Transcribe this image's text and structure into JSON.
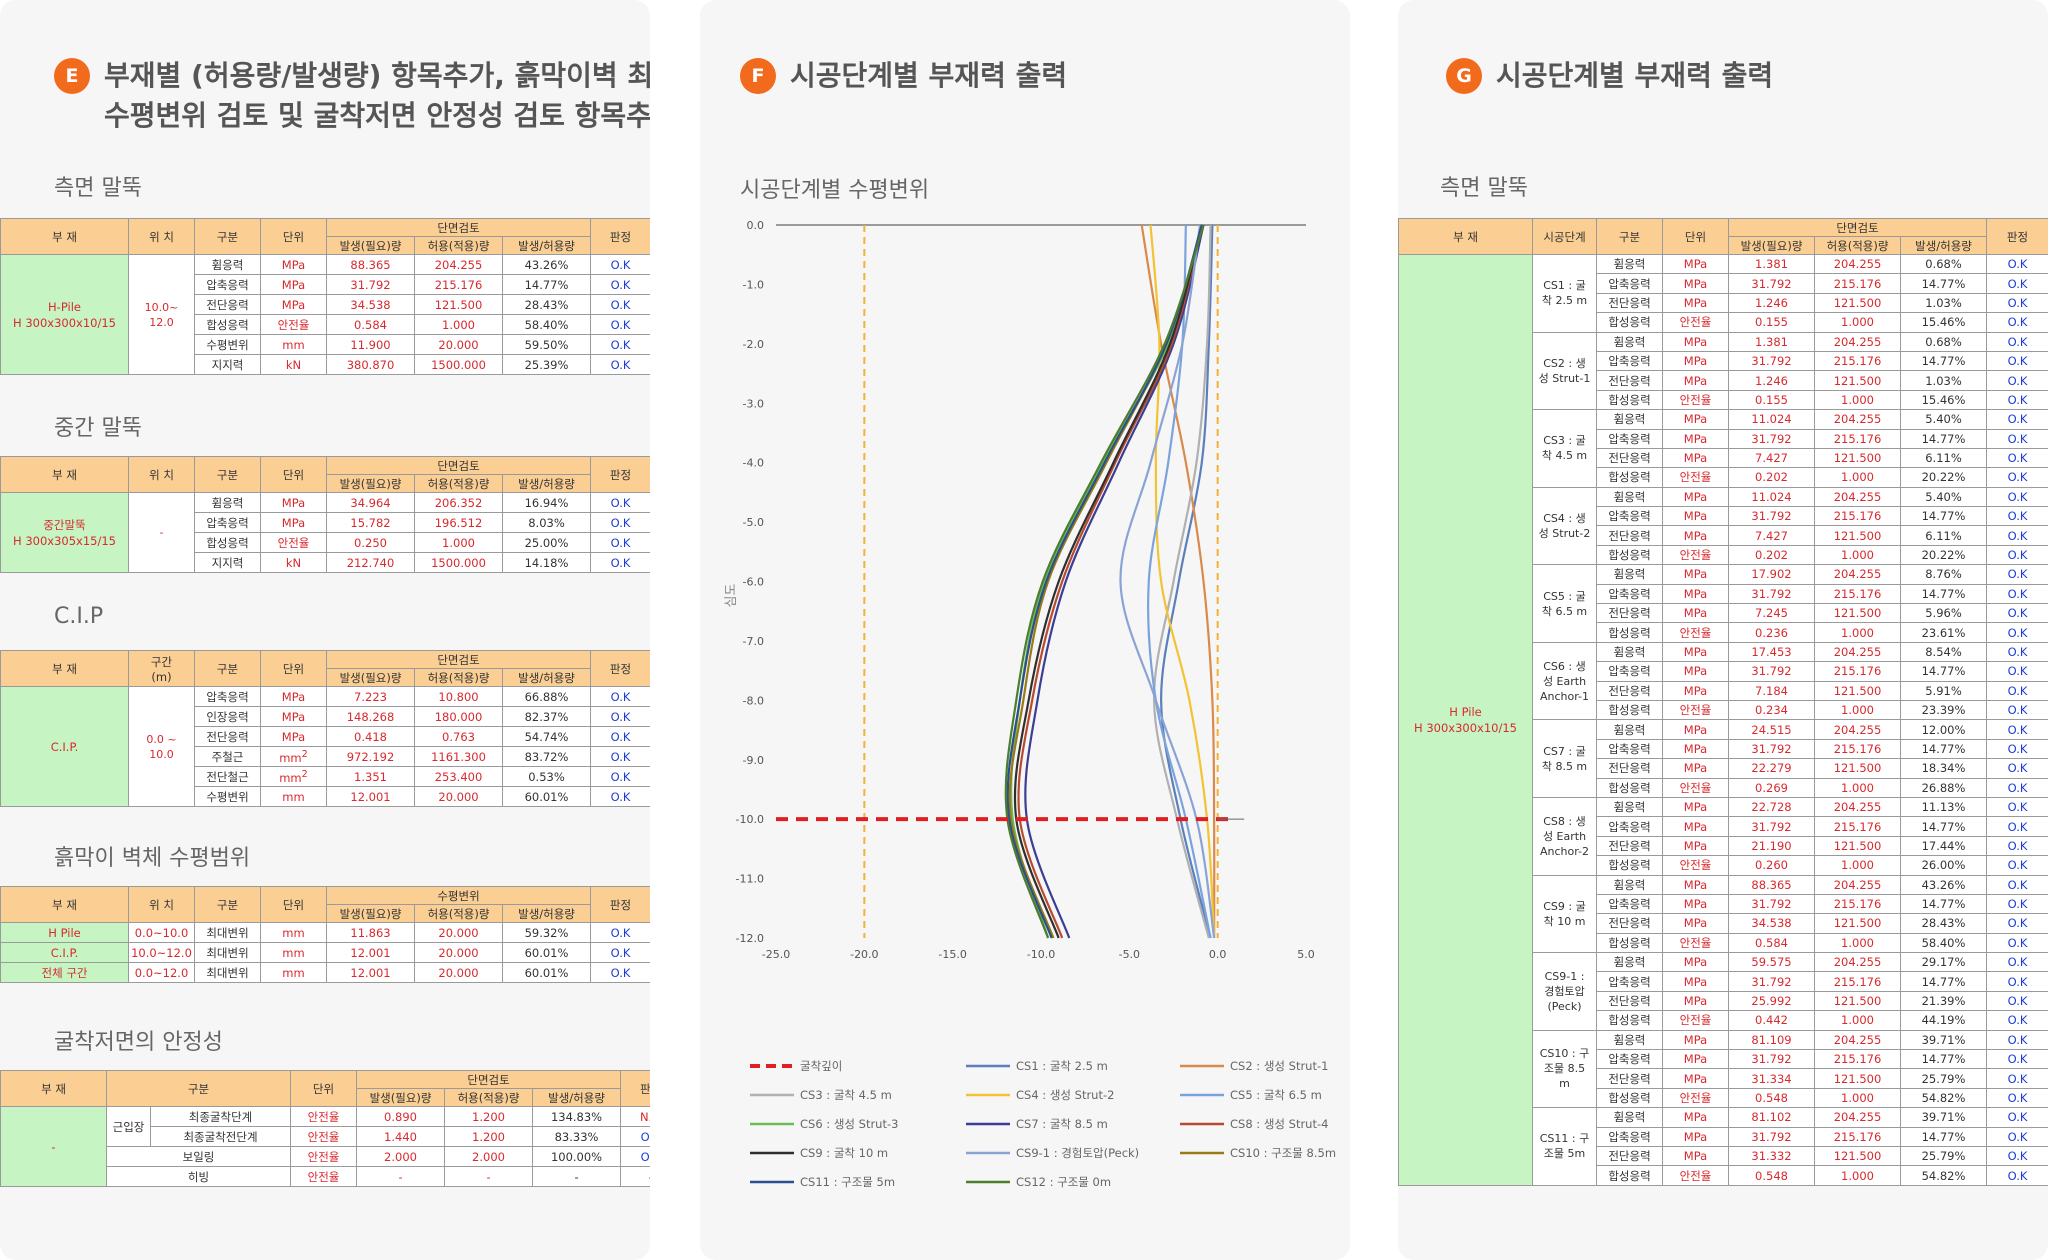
{
  "panelE": {
    "badge": "E",
    "title_line1": "부재별 (허용량/발생량) 항목추가, 흙막이벽 최대",
    "title_line2": "수평변위 검토 및 굴착저면 안정성 검토 항목추가",
    "side_pile": {
      "section_title": "측면 말뚝",
      "headers": {
        "material": "부 재",
        "position": "위 치",
        "category": "구분",
        "unit": "단위",
        "group": "단면검토",
        "occur": "발생(필요)량",
        "allow": "허용(적용)량",
        "ratio": "발생/허용량",
        "verdict": "판정"
      },
      "material": "H-Pile\nH 300x300x10/15",
      "position": "10.0~\n12.0",
      "rows": [
        {
          "cat": "휨응력",
          "unit": "MPa",
          "occur": "88.365",
          "allow": "204.255",
          "ratio": "43.26%",
          "verdict": "O.K"
        },
        {
          "cat": "압축응력",
          "unit": "MPa",
          "occur": "31.792",
          "allow": "215.176",
          "ratio": "14.77%",
          "verdict": "O.K"
        },
        {
          "cat": "전단응력",
          "unit": "MPa",
          "occur": "34.538",
          "allow": "121.500",
          "ratio": "28.43%",
          "verdict": "O.K"
        },
        {
          "cat": "합성응력",
          "unit": "안전율",
          "occur": "0.584",
          "allow": "1.000",
          "ratio": "58.40%",
          "verdict": "O.K"
        },
        {
          "cat": "수평변위",
          "unit": "mm",
          "occur": "11.900",
          "allow": "20.000",
          "ratio": "59.50%",
          "verdict": "O.K"
        },
        {
          "cat": "지지력",
          "unit": "kN",
          "occur": "380.870",
          "allow": "1500.000",
          "ratio": "25.39%",
          "verdict": "O.K"
        }
      ]
    },
    "mid_pile": {
      "section_title": "중간 말뚝",
      "material": "중간말뚝\nH 300x305x15/15",
      "position": "-",
      "rows": [
        {
          "cat": "휨응력",
          "unit": "MPa",
          "occur": "34.964",
          "allow": "206.352",
          "ratio": "16.94%",
          "verdict": "O.K"
        },
        {
          "cat": "압축응력",
          "unit": "MPa",
          "occur": "15.782",
          "allow": "196.512",
          "ratio": "8.03%",
          "verdict": "O.K"
        },
        {
          "cat": "합성응력",
          "unit": "안전율",
          "occur": "0.250",
          "allow": "1.000",
          "ratio": "25.00%",
          "verdict": "O.K"
        },
        {
          "cat": "지지력",
          "unit": "kN",
          "occur": "212.740",
          "allow": "1500.000",
          "ratio": "14.18%",
          "verdict": "O.K"
        }
      ]
    },
    "cip": {
      "section_title": "C.I.P",
      "range_header": "구간\n(m)",
      "material": "C.I.P.",
      "range": "0.0 ~\n10.0",
      "rows": [
        {
          "cat": "압축응력",
          "unit": "MPa",
          "occur": "7.223",
          "allow": "10.800",
          "ratio": "66.88%",
          "verdict": "O.K"
        },
        {
          "cat": "인장응력",
          "unit": "MPa",
          "occur": "148.268",
          "allow": "180.000",
          "ratio": "82.37%",
          "verdict": "O.K"
        },
        {
          "cat": "전단응력",
          "unit": "MPa",
          "occur": "0.418",
          "allow": "0.763",
          "ratio": "54.74%",
          "verdict": "O.K"
        },
        {
          "cat": "주철근",
          "unit": "mm²",
          "occur": "972.192",
          "allow": "1161.300",
          "ratio": "83.72%",
          "verdict": "O.K"
        },
        {
          "cat": "전단철근",
          "unit": "mm²",
          "occur": "1.351",
          "allow": "253.400",
          "ratio": "0.53%",
          "verdict": "O.K"
        },
        {
          "cat": "수평변위",
          "unit": "mm",
          "occur": "12.001",
          "allow": "20.000",
          "ratio": "60.01%",
          "verdict": "O.K"
        }
      ]
    },
    "wall_disp": {
      "section_title": "흙막이 벽체 수평범위",
      "group": "수평변위",
      "rows": [
        {
          "mat": "H Pile",
          "pos": "0.0~10.0",
          "cat": "최대변위",
          "unit": "mm",
          "occur": "11.863",
          "allow": "20.000",
          "ratio": "59.32%",
          "verdict": "O.K"
        },
        {
          "mat": "C.I.P.",
          "pos": "10.0~12.0",
          "cat": "최대변위",
          "unit": "mm",
          "occur": "12.001",
          "allow": "20.000",
          "ratio": "60.01%",
          "verdict": "O.K"
        },
        {
          "mat": "전체 구간",
          "pos": "0.0~12.0",
          "cat": "최대변위",
          "unit": "mm",
          "occur": "12.001",
          "allow": "20.000",
          "ratio": "60.01%",
          "verdict": "O.K"
        }
      ]
    },
    "bottom": {
      "section_title": "굴착저면의 안정성",
      "material": "-",
      "heave_label": "근입장",
      "rows": [
        {
          "cat": "최종굴착단계",
          "unit": "안전율",
          "occur": "0.890",
          "allow": "1.200",
          "ratio": "134.83%",
          "verdict": "N.G"
        },
        {
          "cat": "최종굴착전단계",
          "unit": "안전율",
          "occur": "1.440",
          "allow": "1.200",
          "ratio": "83.33%",
          "verdict": "O.K"
        },
        {
          "cat": "보일링",
          "unit": "안전율",
          "occur": "2.000",
          "allow": "2.000",
          "ratio": "100.00%",
          "verdict": "O.K"
        },
        {
          "cat": "히빙",
          "unit": "안전율",
          "occur": "-",
          "allow": "-",
          "ratio": "-",
          "verdict": "-"
        }
      ]
    }
  },
  "panelF": {
    "badge": "F",
    "title": "시공단계별 부재력 출력",
    "chart_title": "시공단계별 수평변위",
    "colors": {
      "excav": "#e02020",
      "ref": "#f2b233"
    }
  },
  "chart_data": {
    "type": "line",
    "title": "시공단계별 수평변위",
    "ylabel": "심도",
    "xlim": [
      -25,
      5
    ],
    "ylim": [
      -12,
      0
    ],
    "xticks": [
      "-25.0",
      "-20.0",
      "-15.0",
      "-10.0",
      "-5.0",
      "0.0",
      "5.0"
    ],
    "yticks": [
      "0.0",
      "-1.0",
      "-2.0",
      "-3.0",
      "-4.0",
      "-5.0",
      "-6.0",
      "-7.0",
      "-8.0",
      "-9.0",
      "-10.0",
      "-11.0",
      "-12.0"
    ],
    "excavation_line": {
      "name": "굴착깊이",
      "y": -10,
      "x": [
        -25,
        1
      ]
    },
    "reference_lines": [
      {
        "x": -20
      },
      {
        "x": 0
      }
    ],
    "depths": [
      0,
      -2,
      -4,
      -6,
      -8,
      -10,
      -12
    ],
    "series": [
      {
        "name": "CS1 : 굴착 2.5 m",
        "color": "#5b7fbd",
        "x": [
          -0.3,
          -0.5,
          -0.9,
          -2.2,
          -3.2,
          -2.1,
          -0.4
        ]
      },
      {
        "name": "CS2 : 생성 Strut-1",
        "color": "#d98a4a",
        "x": [
          -4.3,
          -3.2,
          -1.8,
          -0.8,
          -0.3,
          -0.2,
          -0.2
        ]
      },
      {
        "name": "CS3 : 굴착 4.5 m",
        "color": "#b0b0b0",
        "x": [
          -0.4,
          -0.6,
          -1.2,
          -2.5,
          -3.6,
          -2.3,
          -0.5
        ]
      },
      {
        "name": "CS4 : 생성 Strut-2",
        "color": "#f2c333",
        "x": [
          -3.8,
          -3.3,
          -3.5,
          -3.2,
          -1.6,
          -0.6,
          -0.2
        ]
      },
      {
        "name": "CS5 : 굴착 6.5 m",
        "color": "#7aa3dc",
        "x": [
          -1.8,
          -2.0,
          -2.8,
          -3.9,
          -3.5,
          -1.8,
          -0.4
        ]
      },
      {
        "name": "CS6 : 생성 Strut-3",
        "color": "#6bbd5b",
        "x": [
          -0.8,
          -2.8,
          -6.5,
          -9.8,
          -11.2,
          -11.6,
          -9.6
        ]
      },
      {
        "name": "CS7 : 굴착 8.5 m",
        "color": "#3a3f94",
        "x": [
          -0.8,
          -2.5,
          -5.6,
          -8.6,
          -10.2,
          -10.8,
          -8.4
        ]
      },
      {
        "name": "CS8 : 생성 Strut-4",
        "color": "#b84b2f",
        "x": [
          -0.9,
          -2.6,
          -5.8,
          -8.8,
          -10.5,
          -11.2,
          -8.8
        ]
      },
      {
        "name": "CS9 : 굴착 10 m",
        "color": "#2f2f2f",
        "x": [
          -0.9,
          -2.7,
          -5.9,
          -9.0,
          -10.7,
          -11.4,
          -9.0
        ]
      },
      {
        "name": "CS9-1 : 경험토압(Peck)",
        "color": "#8aa3d6",
        "x": [
          -1.0,
          -2.0,
          -3.8,
          -5.5,
          -3.5,
          -1.2,
          -0.2
        ]
      },
      {
        "name": "CS10 : 구조물 8.5m",
        "color": "#9a7a14",
        "x": [
          -0.9,
          -2.9,
          -6.3,
          -9.6,
          -11.0,
          -11.7,
          -9.3
        ]
      },
      {
        "name": "CS11 : 구조물 5m",
        "color": "#2a4f8f",
        "x": [
          -0.9,
          -2.9,
          -6.4,
          -9.7,
          -11.2,
          -11.8,
          -9.4
        ]
      },
      {
        "name": "CS12 : 구조물 0m",
        "color": "#4d7d2f",
        "x": [
          -0.8,
          -3.0,
          -6.6,
          -9.9,
          -11.4,
          -11.9,
          -9.6
        ]
      }
    ]
  },
  "panelG": {
    "badge": "G",
    "title": "시공단계별 부재력 출력",
    "section_title": "측면 말뚝",
    "headers": {
      "material": "부 재",
      "stage": "시공단계",
      "category": "구분",
      "unit": "단위",
      "group": "단면검토",
      "occur": "발생(필요)량",
      "allow": "허용(적용)량",
      "ratio": "발생/허용량",
      "verdict": "판정"
    },
    "material": "H Pile\nH 300x300x10/15",
    "cats": [
      "휨응력",
      "압축응력",
      "전단응력",
      "합성응력"
    ],
    "stages": [
      {
        "name": "CS1 : 굴\n착 2.5 m",
        "rows": [
          [
            "MPa",
            "1.381",
            "204.255",
            "0.68%",
            "O.K"
          ],
          [
            "MPa",
            "31.792",
            "215.176",
            "14.77%",
            "O.K"
          ],
          [
            "MPa",
            "1.246",
            "121.500",
            "1.03%",
            "O.K"
          ],
          [
            "안전율",
            "0.155",
            "1.000",
            "15.46%",
            "O.K"
          ]
        ]
      },
      {
        "name": "CS2 : 생\n성 Strut-1",
        "rows": [
          [
            "MPa",
            "1.381",
            "204.255",
            "0.68%",
            "O.K"
          ],
          [
            "MPa",
            "31.792",
            "215.176",
            "14.77%",
            "O.K"
          ],
          [
            "MPa",
            "1.246",
            "121.500",
            "1.03%",
            "O.K"
          ],
          [
            "안전율",
            "0.155",
            "1.000",
            "15.46%",
            "O.K"
          ]
        ]
      },
      {
        "name": "CS3 : 굴\n착 4.5 m",
        "rows": [
          [
            "MPa",
            "11.024",
            "204.255",
            "5.40%",
            "O.K"
          ],
          [
            "MPa",
            "31.792",
            "215.176",
            "14.77%",
            "O.K"
          ],
          [
            "MPa",
            "7.427",
            "121.500",
            "6.11%",
            "O.K"
          ],
          [
            "안전율",
            "0.202",
            "1.000",
            "20.22%",
            "O.K"
          ]
        ]
      },
      {
        "name": "CS4 : 생\n성 Strut-2",
        "rows": [
          [
            "MPa",
            "11.024",
            "204.255",
            "5.40%",
            "O.K"
          ],
          [
            "MPa",
            "31.792",
            "215.176",
            "14.77%",
            "O.K"
          ],
          [
            "MPa",
            "7.427",
            "121.500",
            "6.11%",
            "O.K"
          ],
          [
            "안전율",
            "0.202",
            "1.000",
            "20.22%",
            "O.K"
          ]
        ]
      },
      {
        "name": "CS5 : 굴\n착 6.5 m",
        "rows": [
          [
            "MPa",
            "17.902",
            "204.255",
            "8.76%",
            "O.K"
          ],
          [
            "MPa",
            "31.792",
            "215.176",
            "14.77%",
            "O.K"
          ],
          [
            "MPa",
            "7.245",
            "121.500",
            "5.96%",
            "O.K"
          ],
          [
            "안전율",
            "0.236",
            "1.000",
            "23.61%",
            "O.K"
          ]
        ]
      },
      {
        "name": "CS6 : 생\n성 Earth\nAnchor-1",
        "rows": [
          [
            "MPa",
            "17.453",
            "204.255",
            "8.54%",
            "O.K"
          ],
          [
            "MPa",
            "31.792",
            "215.176",
            "14.77%",
            "O.K"
          ],
          [
            "MPa",
            "7.184",
            "121.500",
            "5.91%",
            "O.K"
          ],
          [
            "안전율",
            "0.234",
            "1.000",
            "23.39%",
            "O.K"
          ]
        ]
      },
      {
        "name": "CS7 : 굴\n착 8.5 m",
        "rows": [
          [
            "MPa",
            "24.515",
            "204.255",
            "12.00%",
            "O.K"
          ],
          [
            "MPa",
            "31.792",
            "215.176",
            "14.77%",
            "O.K"
          ],
          [
            "MPa",
            "22.279",
            "121.500",
            "18.34%",
            "O.K"
          ],
          [
            "안전율",
            "0.269",
            "1.000",
            "26.88%",
            "O.K"
          ]
        ]
      },
      {
        "name": "CS8 : 생\n성 Earth\nAnchor-2",
        "rows": [
          [
            "MPa",
            "22.728",
            "204.255",
            "11.13%",
            "O.K"
          ],
          [
            "MPa",
            "31.792",
            "215.176",
            "14.77%",
            "O.K"
          ],
          [
            "MPa",
            "21.190",
            "121.500",
            "17.44%",
            "O.K"
          ],
          [
            "안전율",
            "0.260",
            "1.000",
            "26.00%",
            "O.K"
          ]
        ]
      },
      {
        "name": "CS9 : 굴\n착 10 m",
        "rows": [
          [
            "MPa",
            "88.365",
            "204.255",
            "43.26%",
            "O.K"
          ],
          [
            "MPa",
            "31.792",
            "215.176",
            "14.77%",
            "O.K"
          ],
          [
            "MPa",
            "34.538",
            "121.500",
            "28.43%",
            "O.K"
          ],
          [
            "안전율",
            "0.584",
            "1.000",
            "58.40%",
            "O.K"
          ]
        ]
      },
      {
        "name": "CS9-1 :\n경험토압\n(Peck)",
        "rows": [
          [
            "MPa",
            "59.575",
            "204.255",
            "29.17%",
            "O.K"
          ],
          [
            "MPa",
            "31.792",
            "215.176",
            "14.77%",
            "O.K"
          ],
          [
            "MPa",
            "25.992",
            "121.500",
            "21.39%",
            "O.K"
          ],
          [
            "안전율",
            "0.442",
            "1.000",
            "44.19%",
            "O.K"
          ]
        ]
      },
      {
        "name": "CS10 : 구\n조물 8.5\nm",
        "rows": [
          [
            "MPa",
            "81.109",
            "204.255",
            "39.71%",
            "O.K"
          ],
          [
            "MPa",
            "31.792",
            "215.176",
            "14.77%",
            "O.K"
          ],
          [
            "MPa",
            "31.334",
            "121.500",
            "25.79%",
            "O.K"
          ],
          [
            "안전율",
            "0.548",
            "1.000",
            "54.82%",
            "O.K"
          ]
        ]
      },
      {
        "name": "CS11 : 구\n조물 5m",
        "rows": [
          [
            "MPa",
            "81.102",
            "204.255",
            "39.71%",
            "O.K"
          ],
          [
            "MPa",
            "31.792",
            "215.176",
            "14.77%",
            "O.K"
          ],
          [
            "MPa",
            "31.332",
            "121.500",
            "25.79%",
            "O.K"
          ],
          [
            "안전율",
            "0.548",
            "1.000",
            "54.82%",
            "O.K"
          ]
        ]
      }
    ]
  }
}
